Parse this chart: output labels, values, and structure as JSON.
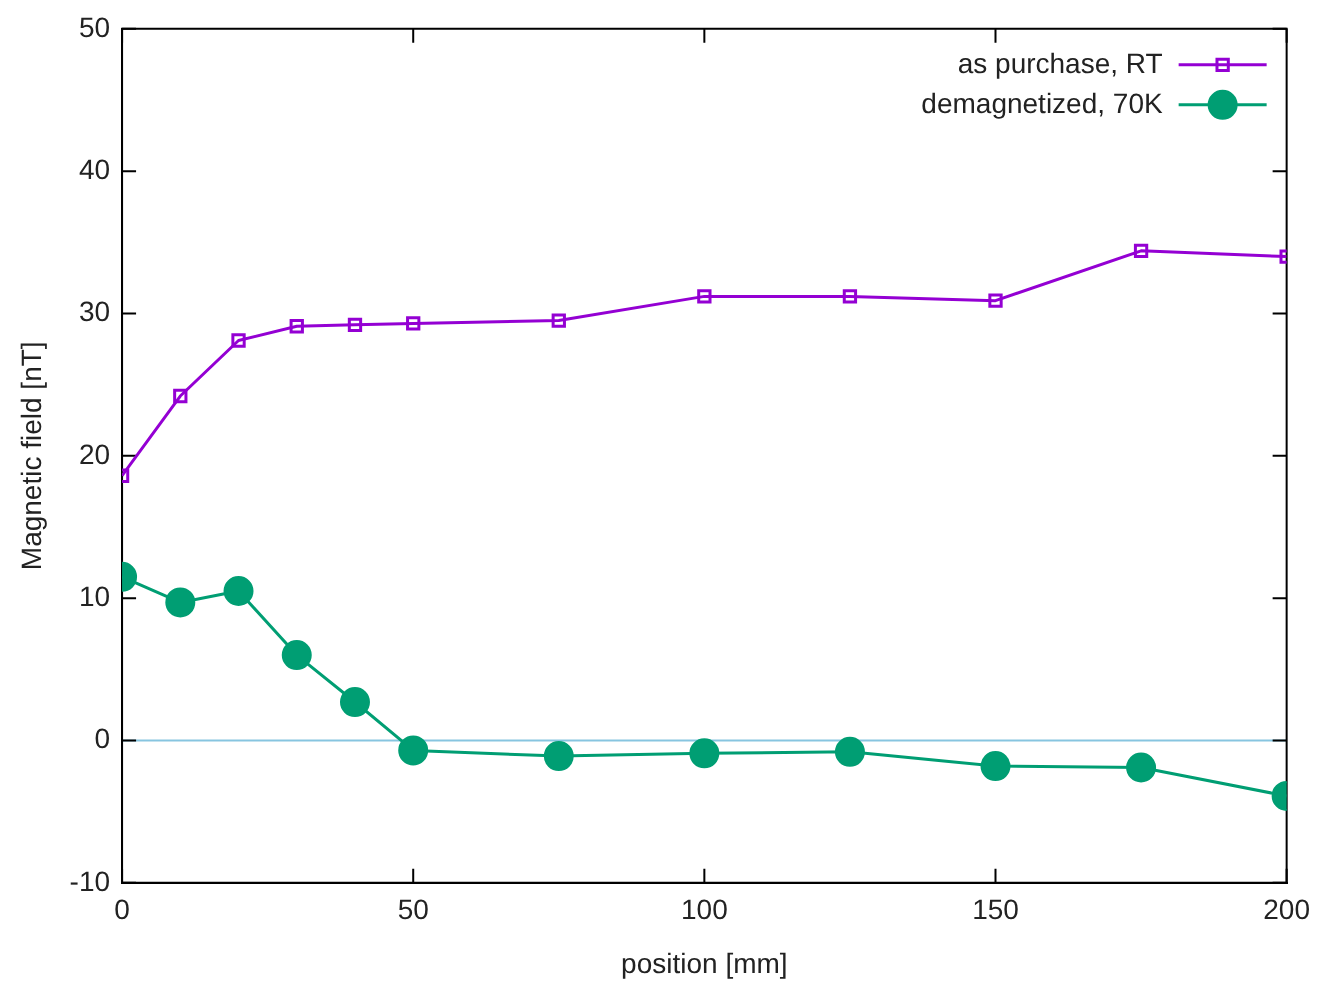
{
  "chart_data": {
    "type": "line",
    "xlabel": "position [mm]",
    "ylabel": "Magnetic field [nT]",
    "x": [
      0,
      10,
      20,
      30,
      40,
      50,
      75,
      100,
      125,
      150,
      175,
      200
    ],
    "series": [
      {
        "name": "as purchase, RT",
        "color": "#9400d3",
        "marker": "square",
        "values": [
          18.6,
          24.2,
          28.1,
          29.1,
          29.2,
          29.3,
          29.5,
          31.2,
          31.2,
          30.9,
          34.4,
          34.0
        ]
      },
      {
        "name": "demagnetized, 70K",
        "color": "#009e73",
        "marker": "circle",
        "values": [
          11.5,
          9.7,
          10.5,
          6.0,
          2.7,
          -0.7,
          -1.1,
          -0.9,
          -0.8,
          -1.8,
          -1.9,
          -3.9
        ]
      }
    ],
    "xlim": [
      0,
      200
    ],
    "xticks": [
      0,
      50,
      100,
      150,
      200
    ],
    "ylim": [
      -10,
      50
    ],
    "yticks": [
      -10,
      0,
      10,
      20,
      30,
      40,
      50
    ],
    "ref_lines": [
      {
        "axis": "y",
        "value": 0,
        "color": "#87c5e0"
      }
    ],
    "grid": false,
    "legend": "top right",
    "line_style": "solid"
  }
}
